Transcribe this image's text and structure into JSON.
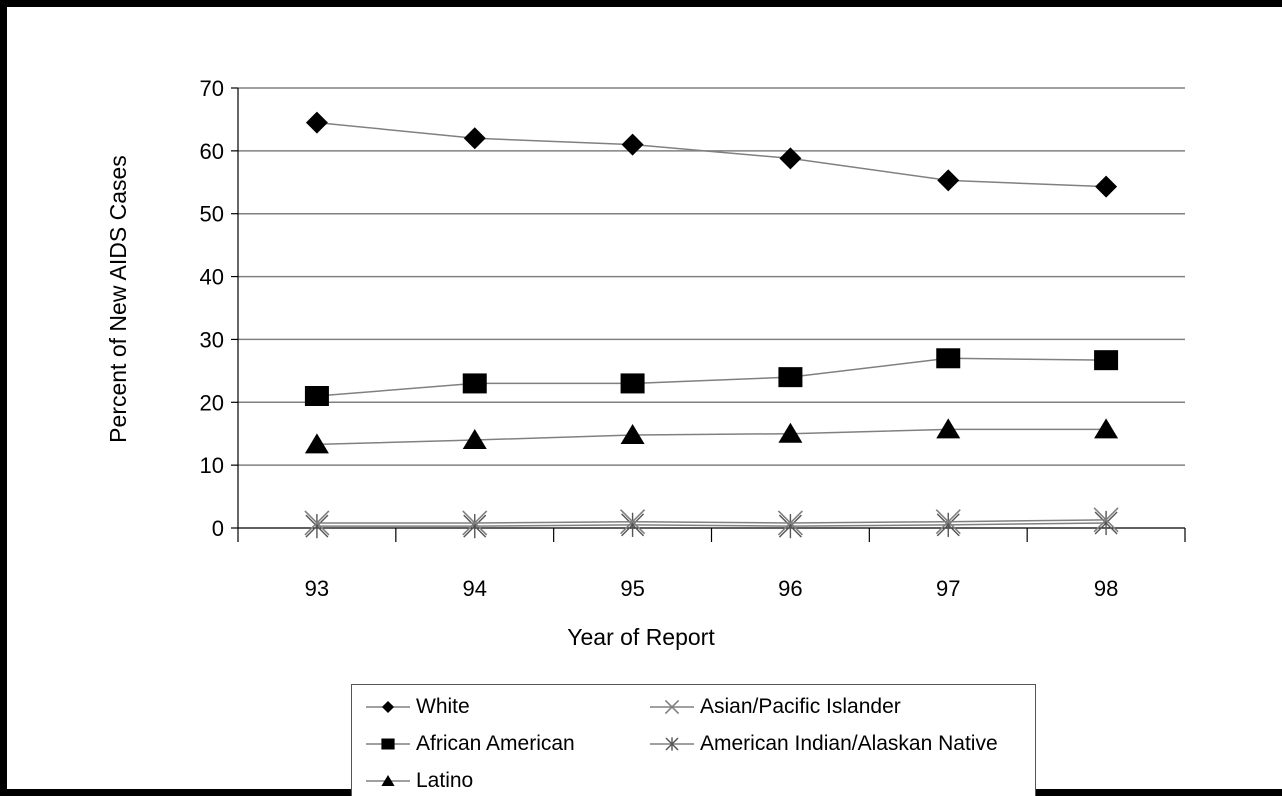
{
  "chart_data": {
    "type": "line",
    "title": "",
    "xlabel": "Year of Report",
    "ylabel": "Percent of New AIDS Cases",
    "categories": [
      "93",
      "94",
      "95",
      "96",
      "97",
      "98"
    ],
    "ylim": [
      0,
      70
    ],
    "yticks": [
      0,
      10,
      20,
      30,
      40,
      50,
      60,
      70
    ],
    "grid": "horizontal",
    "legend_position": "bottom",
    "series": [
      {
        "name": "White",
        "marker": "diamond",
        "values": [
          64.5,
          62.0,
          61.0,
          58.8,
          55.3,
          54.3
        ]
      },
      {
        "name": "African American",
        "marker": "square",
        "values": [
          21.0,
          23.0,
          23.0,
          24.0,
          27.0,
          26.7
        ]
      },
      {
        "name": "Latino",
        "marker": "triangle",
        "values": [
          13.3,
          14.0,
          14.8,
          15.0,
          15.7,
          15.7
        ]
      },
      {
        "name": "Asian/Pacific Islander",
        "marker": "x",
        "values": [
          0.8,
          0.8,
          1.0,
          0.8,
          1.0,
          1.3
        ]
      },
      {
        "name": "American Indian/Alaskan Native",
        "marker": "asterisk",
        "values": [
          0.3,
          0.3,
          0.5,
          0.3,
          0.5,
          0.8
        ]
      }
    ]
  },
  "legend": {
    "items": [
      {
        "label": "White",
        "marker": "diamond"
      },
      {
        "label": "Asian/Pacific Islander",
        "marker": "x"
      },
      {
        "label": "African American",
        "marker": "square"
      },
      {
        "label": "American Indian/Alaskan Native",
        "marker": "asterisk"
      },
      {
        "label": "Latino",
        "marker": "triangle"
      }
    ]
  },
  "colors": {
    "background": "#000000",
    "plot": "#ffffff",
    "line": "#808080",
    "marker": "#000000",
    "x_marker": "#808080"
  }
}
